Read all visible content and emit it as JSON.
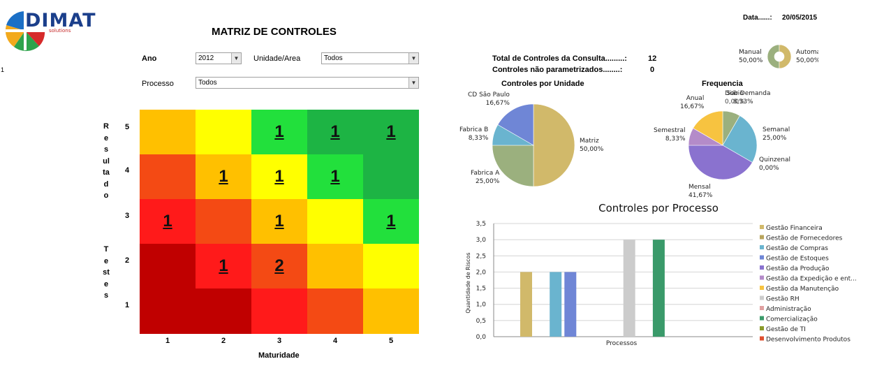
{
  "logo": {
    "text": "DIMAT",
    "subtitle": "solutions"
  },
  "page_title": "MATRIZ DE CONTROLES",
  "row_number": "1",
  "date": {
    "label": "Data......:",
    "value": "20/05/2015"
  },
  "filters": {
    "ano_label": "Ano",
    "ano_value": "2012",
    "unidade_label": "Unidade/Area",
    "unidade_value": "Todos",
    "processo_label": "Processo",
    "processo_value": "Todos"
  },
  "stats": {
    "total_label": "Total de Controles da Consulta.........:",
    "total_value": "12",
    "nao_param_label": "Controles não parametrizados........:",
    "nao_param_value": "0"
  },
  "donut": {
    "manual_label": "Manual",
    "manual_pct": "50,00%",
    "auto_label": "Automa",
    "auto_pct": "50,00%",
    "manual_value": 50,
    "auto_value": 50,
    "colors": [
      "#9bb07e",
      "#d1b96a"
    ]
  },
  "matrix": {
    "y_axis_word_1": "Resultado",
    "y_axis_word_2": "Testes",
    "x_axis_label": "Maturidade",
    "x_ticks": [
      "1",
      "2",
      "3",
      "4",
      "5"
    ],
    "y_ticks": [
      "5",
      "4",
      "3",
      "2",
      "1"
    ],
    "rows": [
      {
        "colors": [
          "#ffc000",
          "#ffff00",
          "#22e03c",
          "#1db444",
          "#1db444"
        ],
        "values": [
          "",
          "",
          "1",
          "1",
          "1"
        ]
      },
      {
        "colors": [
          "#f44a14",
          "#ffc000",
          "#ffff00",
          "#22e03c",
          "#1db444"
        ],
        "values": [
          "",
          "1",
          "1",
          "1",
          ""
        ]
      },
      {
        "colors": [
          "#ff1a1a",
          "#f44a14",
          "#ffc000",
          "#ffff00",
          "#22e03c"
        ],
        "values": [
          "1",
          "",
          "1",
          "",
          "1"
        ]
      },
      {
        "colors": [
          "#c00000",
          "#ff1a1a",
          "#f44a14",
          "#ffc000",
          "#ffff00"
        ],
        "values": [
          "",
          "1",
          "2",
          "",
          ""
        ]
      },
      {
        "colors": [
          "#c00000",
          "#c00000",
          "#ff1a1a",
          "#f44a14",
          "#ffc000"
        ],
        "values": [
          "",
          "",
          "",
          "",
          ""
        ]
      }
    ]
  },
  "pie_unidade": {
    "title": "Controles por Unidade",
    "slices": [
      {
        "name": "Matriz",
        "pct": "50,00%",
        "value": 50,
        "color": "#d1b96a"
      },
      {
        "name": "Fabrica A",
        "pct": "25,00%",
        "value": 25,
        "color": "#9bb07e"
      },
      {
        "name": "Fabrica B",
        "pct": "8,33%",
        "value": 8.33,
        "color": "#6ab4cf"
      },
      {
        "name": "CD São Paulo",
        "pct": "16,67%",
        "value": 16.67,
        "color": "#6f86d6"
      }
    ]
  },
  "pie_frequencia": {
    "title": "Frequencia",
    "slices": [
      {
        "name": "Sob Demanda",
        "pct": "8,33%",
        "value": 8.33,
        "color": "#9bb07e"
      },
      {
        "name": "Semanal",
        "pct": "25,00%",
        "value": 25,
        "color": "#6ab4cf"
      },
      {
        "name": "Quinzenal",
        "pct": "0,00%",
        "value": 0,
        "color": "#6f86d6"
      },
      {
        "name": "Mensal",
        "pct": "41,67%",
        "value": 41.67,
        "color": "#8a72cf"
      },
      {
        "name": "Semestral",
        "pct": "8,33%",
        "value": 8.33,
        "color": "#b48bc9"
      },
      {
        "name": "Anual",
        "pct": "16,67%",
        "value": 16.67,
        "color": "#f7c340"
      },
      {
        "name": "Diário",
        "pct": "0,00%",
        "value": 0,
        "color": "#bbbbbb"
      }
    ]
  },
  "chart_data": {
    "type": "bar",
    "title": "Controles por Processo",
    "xlabel": "Processos",
    "ylabel": "Quantidade de Riscos",
    "ylim": [
      0,
      3.5
    ],
    "yticks": [
      "0,0",
      "0,5",
      "1,0",
      "1,5",
      "2,0",
      "2,5",
      "3,0",
      "3,5"
    ],
    "ytick_values": [
      0,
      0.5,
      1,
      1.5,
      2,
      2.5,
      3,
      3.5
    ],
    "grid": true,
    "legend": "right",
    "series": [
      {
        "name": "Gestão Financeira",
        "value": 2,
        "color": "#d1b96a"
      },
      {
        "name": "Gestão de Fornecedores",
        "value": 0,
        "color": "#b8a45c"
      },
      {
        "name": "Gestão de Compras",
        "value": 2,
        "color": "#6ab4cf"
      },
      {
        "name": "Gestão de Estoques",
        "value": 2,
        "color": "#6f86d6"
      },
      {
        "name": "Gestão da Produção",
        "value": 0,
        "color": "#8a72cf"
      },
      {
        "name": "Gestão da Expedição e ent...",
        "value": 0,
        "color": "#b48bc9"
      },
      {
        "name": "Gestão da Manutenção",
        "value": 0,
        "color": "#f7c340"
      },
      {
        "name": "Gestão RH",
        "value": 3,
        "color": "#cccccc"
      },
      {
        "name": "Administração",
        "value": 0,
        "color": "#e0a0a0"
      },
      {
        "name": "Comercialização",
        "value": 3,
        "color": "#3a9a6a"
      },
      {
        "name": "Gestão de TI",
        "value": 0,
        "color": "#8a9a2a"
      },
      {
        "name": "Desenvolvimento Produtos",
        "value": 0,
        "color": "#e05030"
      }
    ]
  }
}
